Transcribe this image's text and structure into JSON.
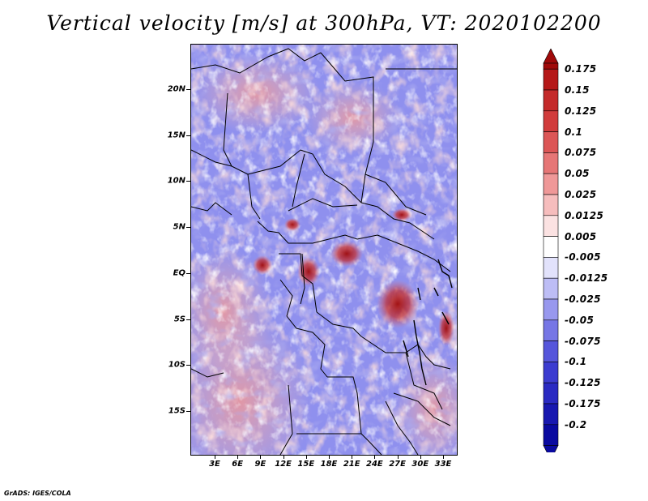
{
  "title": "Vertical velocity [m/s] at 300hPa, VT: 2020102200",
  "credit": "GrADS: IGES/COLA",
  "map": {
    "lat_labels": [
      "20N",
      "15N",
      "10N",
      "5N",
      "EQ",
      "5S",
      "10S",
      "15S"
    ],
    "lon_labels": [
      "3E",
      "6E",
      "9E",
      "12E",
      "15E",
      "18E",
      "21E",
      "24E",
      "27E",
      "30E",
      "33E"
    ],
    "field": "vertical velocity",
    "level": "300hPa",
    "units": "m/s",
    "notable_features": [
      {
        "location": "Central Africa near 4S 27E",
        "sign": "positive",
        "description": "Strong red cluster"
      },
      {
        "location": "Near 2N 19E",
        "sign": "positive",
        "description": "Red cluster"
      },
      {
        "location": "Near 1S 14E",
        "sign": "positive",
        "description": "Red cluster"
      }
    ]
  },
  "colorbar": {
    "labels": [
      "0.175",
      "0.15",
      "0.125",
      "0.1",
      "0.075",
      "0.05",
      "0.025",
      "0.0125",
      "0.005",
      "-0.005",
      "-0.0125",
      "-0.025",
      "-0.05",
      "-0.075",
      "-0.1",
      "-0.125",
      "-0.175",
      "-0.2"
    ],
    "colors": [
      "#a00a0a",
      "#b51818",
      "#c42a2a",
      "#d13c3c",
      "#dc5656",
      "#e67676",
      "#ef9898",
      "#f6bdbd",
      "#fbe2e2",
      "#ffffff",
      "#e2e2fb",
      "#bdbdf5",
      "#9898ee",
      "#7676e5",
      "#5656db",
      "#3c3cd0",
      "#2a2ac2",
      "#1818b0",
      "#0a0aa0"
    ],
    "upper_extension_color": "#a00a0a",
    "lower_extension_color": "#0a0aa0"
  }
}
